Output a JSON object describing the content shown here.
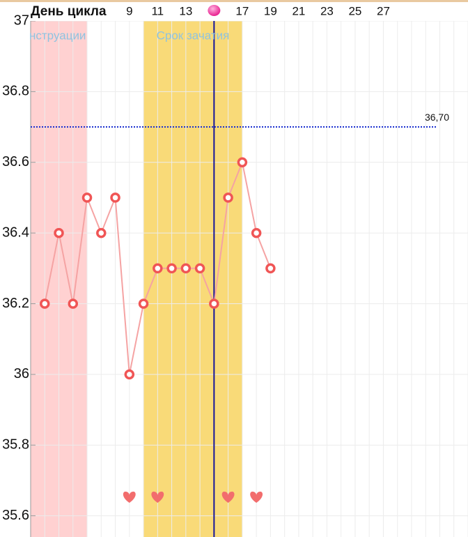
{
  "chart_data": {
    "type": "line",
    "x_label": "День цикла",
    "x": [
      3,
      4,
      5,
      6,
      7,
      8,
      9,
      10,
      11,
      12,
      13,
      14,
      15,
      16,
      17,
      18,
      19
    ],
    "values": [
      36.2,
      36.4,
      36.2,
      36.5,
      36.4,
      36.5,
      36.0,
      36.2,
      36.3,
      36.3,
      36.3,
      36.3,
      36.2,
      36.5,
      36.6,
      36.4,
      36.3
    ],
    "color": "#f5a3a3",
    "marker_color": "#f05555",
    "xlim": [
      2,
      33
    ],
    "ylim": [
      35.54,
      37
    ],
    "xticks": [
      9,
      11,
      13,
      17,
      19,
      21,
      23,
      25,
      27
    ],
    "yticks": [
      37,
      36.8,
      36.6,
      36.4,
      36.2,
      36,
      35.8,
      35.6
    ],
    "bands": [
      {
        "label": "нструации",
        "range": [
          2,
          6
        ],
        "color": "#ffd1d1"
      },
      {
        "label": "Срок зачатия",
        "range": [
          10,
          17
        ],
        "color": "#f9da78"
      }
    ],
    "ovulation_day": 15,
    "coverline": {
      "value": 36.7,
      "label": "36,70"
    },
    "intercourse_days": [
      9,
      11,
      16,
      18
    ],
    "grid": true
  }
}
